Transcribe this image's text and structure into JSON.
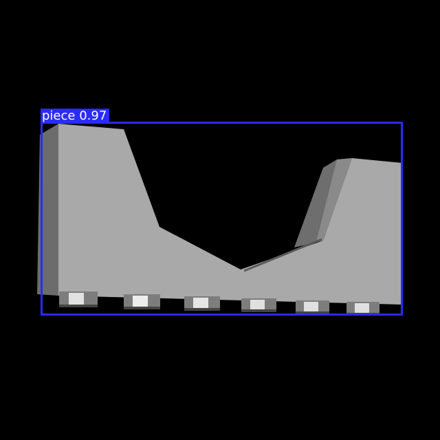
{
  "detection": {
    "class_label": "piece",
    "confidence": "0.97",
    "box_color": "#2b2bff",
    "label_text_color": "#ffffff"
  },
  "scene": {
    "background_color": "#000000",
    "object_color": "#a9a9a9",
    "object_name": "grey-v-shaped-block"
  }
}
